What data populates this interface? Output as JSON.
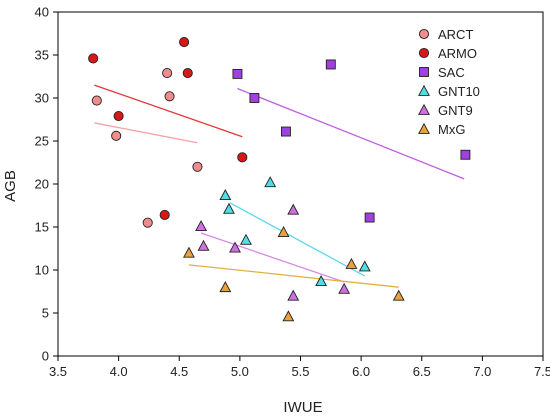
{
  "chart_data": {
    "type": "scatter",
    "title": "",
    "xlabel": "IWUE",
    "ylabel": "AGB",
    "xlim": [
      3.5,
      7.5
    ],
    "ylim": [
      0,
      40
    ],
    "xticks": [
      3.5,
      4.0,
      4.5,
      5.0,
      5.5,
      6.0,
      6.5,
      7.0,
      7.5
    ],
    "xtick_labels": [
      "3.5",
      "4.0",
      "4.5",
      "5.0",
      "5.5",
      "6.0",
      "6.5",
      "7.0",
      "7.5"
    ],
    "yticks": [
      0,
      5,
      10,
      15,
      20,
      25,
      30,
      35,
      40
    ],
    "ytick_labels": [
      "0",
      "5",
      "10",
      "15",
      "20",
      "25",
      "30",
      "35",
      "40"
    ],
    "grid": false,
    "legend_position": "top-right",
    "series": [
      {
        "name": "ARCT",
        "marker": "circle",
        "color": "#f08c8c",
        "points": [
          [
            3.82,
            29.7
          ],
          [
            3.98,
            25.6
          ],
          [
            4.4,
            32.9
          ],
          [
            4.42,
            30.2
          ],
          [
            4.65,
            22.0
          ],
          [
            4.24,
            15.5
          ]
        ],
        "trend": [
          [
            3.8,
            27.1
          ],
          [
            4.65,
            24.8
          ]
        ],
        "trend_color": "#f3a3a3"
      },
      {
        "name": "ARMO",
        "marker": "circle",
        "color": "#d81818",
        "points": [
          [
            3.79,
            34.6
          ],
          [
            4.0,
            27.9
          ],
          [
            4.54,
            36.5
          ],
          [
            4.57,
            32.9
          ],
          [
            5.02,
            23.1
          ],
          [
            4.38,
            16.4
          ]
        ],
        "trend": [
          [
            3.8,
            31.5
          ],
          [
            5.02,
            25.5
          ]
        ],
        "trend_color": "#e53838"
      },
      {
        "name": "SAC",
        "marker": "square",
        "color": "#a040e0",
        "points": [
          [
            4.98,
            32.8
          ],
          [
            5.12,
            30.0
          ],
          [
            5.38,
            26.1
          ],
          [
            5.75,
            33.9
          ],
          [
            6.07,
            16.1
          ],
          [
            6.86,
            23.4
          ]
        ],
        "trend": [
          [
            4.98,
            31.1
          ],
          [
            6.85,
            20.6
          ]
        ],
        "trend_color": "#c060e0"
      },
      {
        "name": "GNT10",
        "marker": "triangle-up",
        "color": "#50dde8",
        "points": [
          [
            4.88,
            18.7
          ],
          [
            4.91,
            17.1
          ],
          [
            5.25,
            20.2
          ],
          [
            5.05,
            13.5
          ],
          [
            5.67,
            8.7
          ],
          [
            6.03,
            10.4
          ]
        ],
        "trend": [
          [
            4.92,
            17.8
          ],
          [
            6.03,
            9.3
          ]
        ],
        "trend_color": "#5ad8ea"
      },
      {
        "name": "GNT9",
        "marker": "triangle-up",
        "color": "#d070e0",
        "points": [
          [
            4.68,
            15.1
          ],
          [
            4.7,
            12.8
          ],
          [
            4.96,
            12.6
          ],
          [
            5.44,
            17.0
          ],
          [
            5.44,
            7.0
          ],
          [
            5.86,
            7.8
          ]
        ],
        "trend": [
          [
            4.68,
            14.3
          ],
          [
            5.86,
            8.6
          ]
        ],
        "trend_color": "#d888e8"
      },
      {
        "name": "MxG",
        "marker": "triangle-up",
        "color": "#e8a040",
        "points": [
          [
            4.58,
            12.0
          ],
          [
            4.88,
            8.0
          ],
          [
            5.36,
            14.4
          ],
          [
            5.4,
            4.6
          ],
          [
            5.92,
            10.7
          ],
          [
            6.31,
            7.0
          ]
        ],
        "trend": [
          [
            4.58,
            10.6
          ],
          [
            6.31,
            8.0
          ]
        ],
        "trend_color": "#e0b040"
      }
    ]
  }
}
